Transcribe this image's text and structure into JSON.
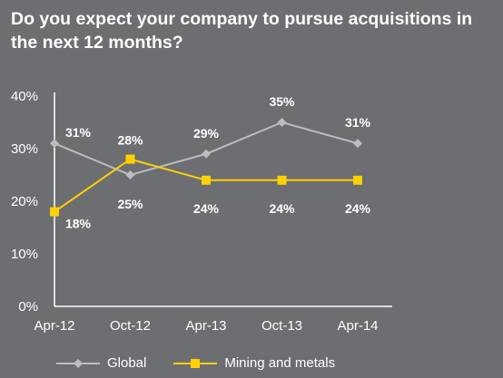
{
  "title": "Do you expect your company to pursue acquisitions in the next 12 months?",
  "chart_data": {
    "type": "line",
    "categories": [
      "Apr-12",
      "Oct-12",
      "Apr-13",
      "Oct-13",
      "Apr-14"
    ],
    "ylim": [
      0,
      40
    ],
    "yticks": [
      "0%",
      "10%",
      "20%",
      "30%",
      "40%"
    ],
    "ytick_values": [
      0,
      10,
      20,
      30,
      40
    ],
    "grid": false,
    "legend_position": "bottom",
    "series": [
      {
        "name": "Global",
        "values": [
          31,
          25,
          29,
          35,
          31
        ],
        "labels": [
          "31%",
          "25%",
          "29%",
          "35%",
          "31%"
        ],
        "color": "#bdbdbd",
        "marker": "diamond"
      },
      {
        "name": "Mining and metals",
        "values": [
          18,
          28,
          24,
          24,
          24
        ],
        "labels": [
          "18%",
          "28%",
          "24%",
          "24%",
          "24%"
        ],
        "color": "#ffd100",
        "marker": "square"
      }
    ]
  },
  "colors": {
    "background": "#6d6e71",
    "axis": "#ffffff",
    "text": "#ffffff"
  }
}
